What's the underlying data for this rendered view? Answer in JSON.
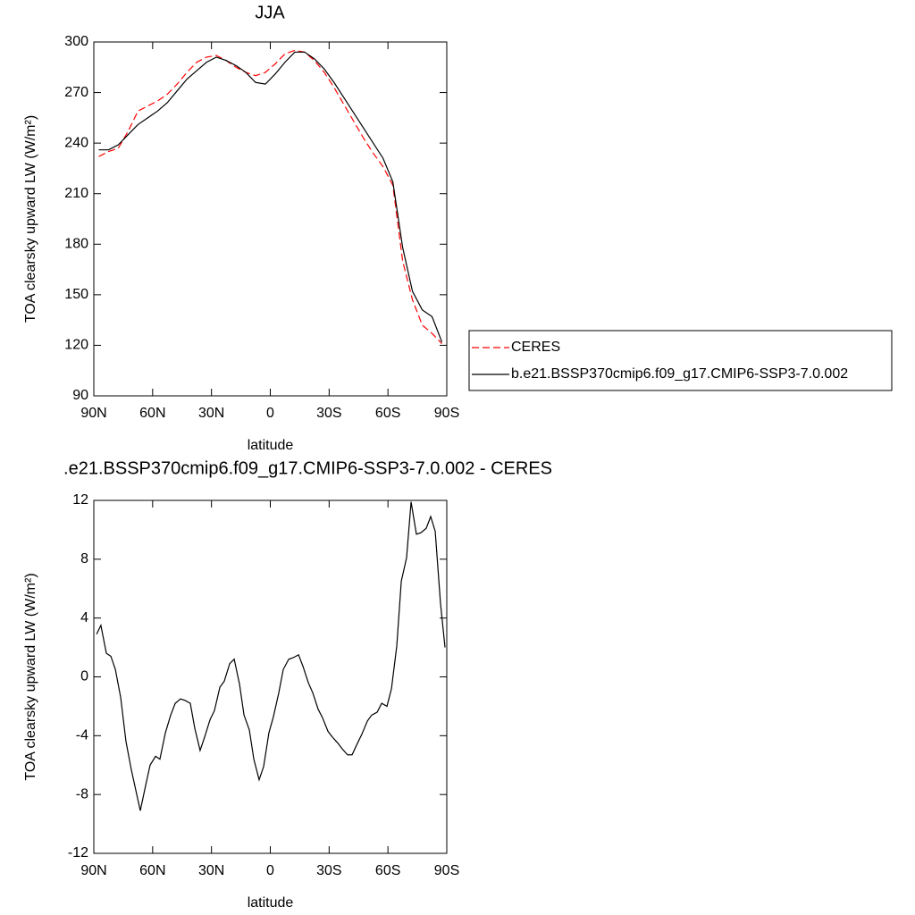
{
  "chart_data": [
    {
      "type": "line",
      "title": "JJA",
      "xlabel": "latitude",
      "ylabel": "TOA clearsky upward LW (W/m²)",
      "x": [
        87.5,
        82.5,
        77.5,
        72.5,
        67.5,
        62.5,
        57.5,
        52.5,
        47.5,
        42.5,
        37.5,
        32.5,
        27.5,
        22.5,
        17.5,
        12.5,
        7.5,
        2.5,
        -2.5,
        -7.5,
        -12.5,
        -17.5,
        -22.5,
        -27.5,
        -32.5,
        -37.5,
        -42.5,
        -47.5,
        -52.5,
        -57.5,
        -62.5,
        -67.5,
        -72.5,
        -77.5,
        -82.5,
        -87.5
      ],
      "series": [
        {
          "name": "CERES",
          "color": "#ff0000",
          "linestyle": "dashed",
          "values": [
            232,
            235,
            237,
            247,
            259,
            262,
            265,
            269,
            275,
            282,
            288,
            291,
            292,
            289,
            285,
            282,
            280,
            282,
            287,
            293,
            295,
            294,
            289,
            282,
            273,
            263,
            253,
            243,
            234,
            226,
            215,
            170,
            147,
            132,
            127,
            121
          ]
        },
        {
          "name": "b.e21.BSSP370cmip6.f09_g17.CMIP6-SSP3-7.0.002",
          "color": "#000000",
          "linestyle": "solid",
          "values": [
            236,
            236,
            239,
            245,
            251,
            255,
            259,
            264,
            271,
            278,
            283,
            288,
            291,
            289,
            286,
            282,
            276,
            275,
            281,
            288,
            294,
            294,
            290,
            284,
            276,
            267,
            258,
            249,
            240,
            231,
            217,
            178,
            152,
            141,
            137,
            122
          ]
        }
      ],
      "xlim": [
        90,
        -90
      ],
      "xticks": [
        {
          "value": 90,
          "label": "90N"
        },
        {
          "value": 60,
          "label": "60N"
        },
        {
          "value": 30,
          "label": "30N"
        },
        0,
        {
          "value": -30,
          "label": "30S"
        },
        {
          "value": -60,
          "label": "60S"
        },
        {
          "value": -90,
          "label": "90S"
        }
      ],
      "ylim": [
        90,
        300
      ],
      "yticks": [
        90,
        120,
        150,
        180,
        210,
        240,
        270,
        300
      ],
      "legend": "right"
    },
    {
      "type": "line",
      "title": ".e21.BSSP370cmip6.f09_g17.CMIP6-SSP3-7.0.002 - CERES",
      "xlabel": "latitude",
      "ylabel": "TOA clearsky upward LW (W/m²)",
      "x": [
        88.6,
        86.4,
        83.6,
        81.3,
        79,
        76.3,
        73.6,
        70.9,
        68.6,
        66.3,
        63.6,
        61.3,
        58.5,
        56.3,
        53.5,
        50.8,
        48.5,
        45.8,
        43.5,
        40.8,
        38.5,
        35.8,
        33.5,
        30.7,
        28.5,
        25.7,
        23.5,
        20.7,
        18.4,
        15.7,
        13.4,
        10.7,
        8.4,
        5.7,
        3.4,
        0.7,
        -1.6,
        -4.3,
        -6.6,
        -9.4,
        -11.6,
        -14.4,
        -16.7,
        -19.4,
        -21.7,
        -24.4,
        -26.7,
        -29.4,
        -31.7,
        -34.4,
        -36.7,
        -39.4,
        -41.7,
        -44.5,
        -46.7,
        -49.5,
        -51.7,
        -54.5,
        -56.8,
        -59.5,
        -61.8,
        -64.5,
        -66.8,
        -69.5,
        -71.8,
        -74.5,
        -76.8,
        -79.5,
        -81.8,
        -84.1,
        -86.8,
        -89.1
      ],
      "series": [
        {
          "color": "#000000",
          "linestyle": "solid",
          "values": [
            2.9,
            3.5,
            1.6,
            1.4,
            0.5,
            -1.4,
            -4.4,
            -6.3,
            -7.7,
            -9.1,
            -7.4,
            -6.0,
            -5.4,
            -5.6,
            -3.8,
            -2.6,
            -1.8,
            -1.5,
            -1.6,
            -1.8,
            -3.5,
            -5.0,
            -4.1,
            -2.9,
            -2.3,
            -0.7,
            -0.3,
            0.9,
            1.2,
            -0.5,
            -2.6,
            -3.6,
            -5.6,
            -7.0,
            -6.1,
            -3.8,
            -2.7,
            -1.1,
            0.5,
            1.2,
            1.3,
            1.5,
            0.7,
            -0.4,
            -1.1,
            -2.2,
            -2.8,
            -3.7,
            -4.1,
            -4.5,
            -4.9,
            -5.3,
            -5.3,
            -4.5,
            -3.9,
            -3.0,
            -2.6,
            -2.4,
            -1.8,
            -2.0,
            -0.8,
            2.1,
            6.5,
            8.1,
            11.9,
            9.7,
            9.8,
            10.1,
            10.9,
            9.9,
            5.0,
            2.0
          ]
        }
      ],
      "xlim": [
        90,
        -90
      ],
      "xticks": [
        {
          "value": 90,
          "label": "90N"
        },
        {
          "value": 60,
          "label": "60N"
        },
        {
          "value": 30,
          "label": "30N"
        },
        0,
        {
          "value": -30,
          "label": "30S"
        },
        {
          "value": -60,
          "label": "60S"
        },
        {
          "value": -90,
          "label": "90S"
        }
      ],
      "ylim": [
        -12,
        12
      ],
      "yticks": [
        -12,
        -8,
        -4,
        0,
        4,
        8,
        12
      ]
    }
  ]
}
